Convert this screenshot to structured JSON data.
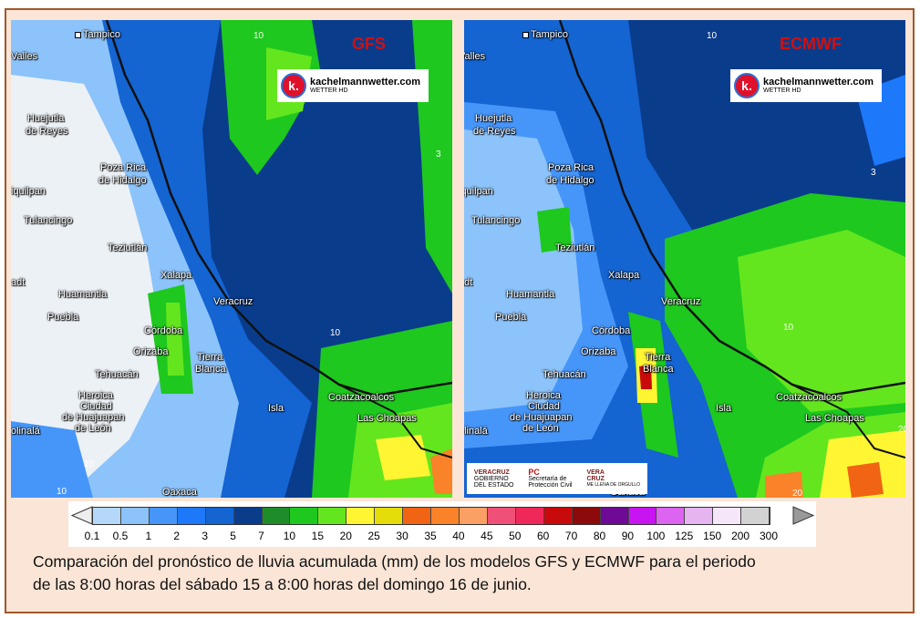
{
  "caption": {
    "line1": "Comparación del pronóstico de lluvia acumulada (mm) de los modelos GFS y ECMWF para el periodo",
    "line2": "de las 8:00 horas del sábado 15 a 8:00 horas del domingo 16 de junio."
  },
  "maps": [
    {
      "model": "GFS",
      "contours": [
        "10",
        "3",
        "10",
        "10",
        "10"
      ]
    },
    {
      "model": "ECMWF",
      "contours": [
        "10",
        "3",
        "10",
        "20",
        "20"
      ]
    }
  ],
  "watermark": {
    "site": "kachelmannwetter.com",
    "sub": "WETTER HD",
    "logo_letter": "k."
  },
  "logos": {
    "veracruz": [
      "VERACRUZ",
      "GOBIERNO",
      "DEL ESTADO"
    ],
    "pc": [
      "PC",
      "Secretaría de",
      "Protección Civil"
    ],
    "vera_cruz": [
      "VERA",
      "CRUZ",
      "ME LLENA DE ORGULLO"
    ]
  },
  "cities": {
    "tampico": "Tampico",
    "valles": "Valles",
    "huejutla1": "Huejutla",
    "huejutla2": "de Reyes",
    "poza1": "Poza Rica",
    "poza2": "de Hidalgo",
    "ixmiquilpan": "iquilpan",
    "tulancingo": "Tulancingo",
    "teziutlan": "Teziutlán",
    "xalapa": "Xalapa",
    "huamantla": "Huamantla",
    "puebla": "Puebla",
    "veracruz": "Veracruz",
    "cordoba": "Córdoba",
    "orizaba": "Orizaba",
    "tierra1": "Tierra",
    "tierra2": "Blanca",
    "tehuacan": "Tehuacán",
    "heroica1": "Heroica",
    "heroica2": "Ciudad",
    "heroica3": "de Huajuapan",
    "heroica4": "de León",
    "isla": "Isla",
    "coatza": "Coatzacoalcos",
    "choapas": "Las Choapas",
    "oaxaca": "Oaxaca",
    "olinala": "olinalá",
    "adt": "adt"
  },
  "legend": {
    "colors": [
      "#b4d7fa",
      "#8cc3fa",
      "#4696fa",
      "#1e78fa",
      "#1464d2",
      "#0a3c8c",
      "#1e8c28",
      "#1ec81e",
      "#64e61e",
      "#fff532",
      "#e6dc0a",
      "#f06414",
      "#fa8228",
      "#faa064",
      "#f05078",
      "#f0285a",
      "#c80a0a",
      "#8c0a0a",
      "#6e0a96",
      "#c814f0",
      "#dc64f0",
      "#e6b4f0",
      "#f5e6fa",
      "#d2d2d2"
    ],
    "ticks": [
      "0.1",
      "0.5",
      "1",
      "2",
      "3",
      "5",
      "7",
      "10",
      "15",
      "20",
      "25",
      "30",
      "35",
      "40",
      "45",
      "50",
      "60",
      "70",
      "80",
      "90",
      "100",
      "125",
      "150",
      "200",
      "300"
    ],
    "unit": "mm"
  }
}
